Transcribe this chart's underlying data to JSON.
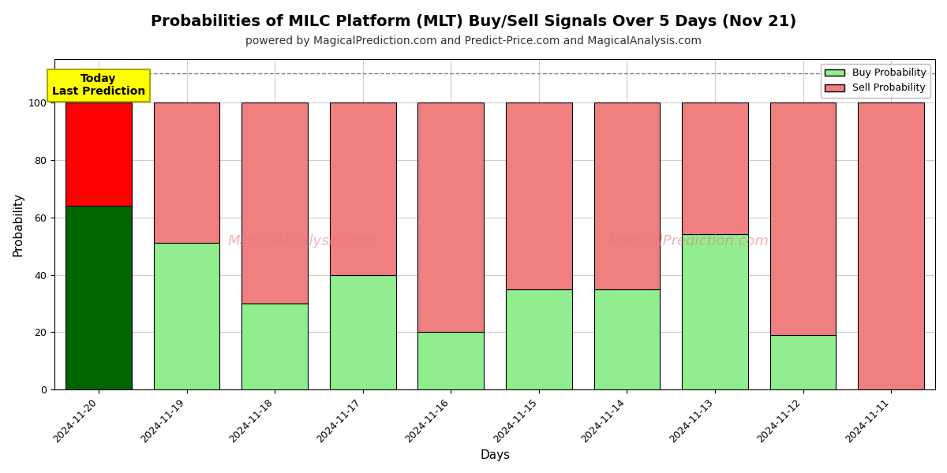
{
  "title": "Probabilities of MILC Platform (MLT) Buy/Sell Signals Over 5 Days (Nov 21)",
  "subtitle": "powered by MagicalPrediction.com and Predict-Price.com and MagicalAnalysis.com",
  "xlabel": "Days",
  "ylabel": "Probability",
  "watermark_left": "MagicalAnalysis.com",
  "watermark_right": "MagicalPrediction.com",
  "categories": [
    "2024-11-20",
    "2024-11-19",
    "2024-11-18",
    "2024-11-17",
    "2024-11-16",
    "2024-11-15",
    "2024-11-14",
    "2024-11-13",
    "2024-11-12",
    "2024-11-11"
  ],
  "buy_values": [
    64,
    51,
    30,
    40,
    20,
    35,
    35,
    54,
    19,
    0
  ],
  "sell_values": [
    36,
    49,
    70,
    60,
    80,
    65,
    65,
    46,
    81,
    100
  ],
  "today_buy_color": "#006400",
  "today_sell_color": "#FF0000",
  "buy_color": "#90EE90",
  "sell_color": "#F08080",
  "today_label": "Today\nLast Prediction",
  "today_label_bg": "#FFFF00",
  "legend_buy": "Buy Probability",
  "legend_sell": "Sell Probability",
  "dashed_line_y": 110,
  "ylim": [
    0,
    115
  ],
  "yticks": [
    0,
    20,
    40,
    60,
    80,
    100
  ],
  "grid_color": "#cccccc",
  "bar_edgecolor": "#000000",
  "title_fontsize": 14,
  "subtitle_fontsize": 10,
  "label_fontsize": 11,
  "tick_fontsize": 9,
  "legend_fontsize": 9
}
